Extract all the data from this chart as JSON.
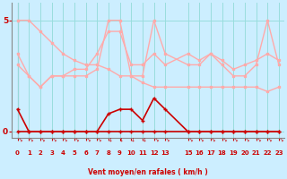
{
  "bg_color": "#cceeff",
  "grid_color": "#99dddd",
  "line_color_dark": "#cc0000",
  "line_color_light": "#ffaaaa",
  "xlabel": "Vent moyen/en rafales ( km/h )",
  "ylim": [
    -0.3,
    5.8
  ],
  "xlim": [
    -0.5,
    23.5
  ],
  "xticks": [
    0,
    1,
    2,
    3,
    4,
    5,
    6,
    7,
    8,
    9,
    10,
    11,
    12,
    13,
    15,
    16,
    17,
    18,
    19,
    20,
    21,
    22,
    23
  ],
  "yticks": [
    0,
    5
  ],
  "series_light": [
    {
      "x": [
        0,
        1,
        2,
        3,
        4,
        5,
        6,
        7,
        8,
        9,
        10,
        11,
        12,
        13,
        15,
        16,
        17,
        18,
        19,
        20,
        21,
        22,
        23
      ],
      "y": [
        5.0,
        5.0,
        4.5,
        4.0,
        3.5,
        3.2,
        3.0,
        3.0,
        2.8,
        2.5,
        2.5,
        2.2,
        2.0,
        2.0,
        2.0,
        2.0,
        2.0,
        2.0,
        2.0,
        2.0,
        2.0,
        1.8,
        2.0
      ]
    },
    {
      "x": [
        0,
        1,
        2,
        3,
        4,
        5,
        6,
        7,
        8,
        9,
        10,
        11,
        12,
        13,
        15,
        16,
        17,
        18,
        19,
        20,
        21,
        22,
        23
      ],
      "y": [
        3.0,
        2.5,
        2.0,
        2.5,
        2.5,
        2.5,
        2.5,
        2.8,
        5.0,
        5.0,
        2.5,
        2.5,
        5.0,
        3.5,
        3.0,
        3.0,
        3.5,
        3.0,
        2.5,
        2.5,
        3.0,
        5.0,
        3.0
      ]
    },
    {
      "x": [
        0,
        1,
        2,
        3,
        4,
        5,
        6,
        7,
        8,
        9,
        10,
        11,
        12,
        13,
        15,
        16,
        17,
        18,
        19,
        20,
        21,
        22,
        23
      ],
      "y": [
        3.5,
        2.5,
        2.0,
        2.5,
        2.5,
        2.8,
        2.8,
        3.5,
        4.5,
        4.5,
        3.0,
        3.0,
        3.5,
        3.0,
        3.5,
        3.2,
        3.5,
        3.2,
        2.8,
        3.0,
        3.2,
        3.5,
        3.2
      ]
    }
  ],
  "series_dark": [
    {
      "x": [
        0,
        1,
        2,
        3,
        4,
        5,
        6,
        7,
        8,
        9,
        10,
        11,
        12,
        13,
        15,
        16,
        17,
        18,
        19,
        20,
        21,
        22,
        23
      ],
      "y": [
        1.0,
        0.0,
        0.0,
        0.0,
        0.0,
        0.0,
        0.0,
        0.0,
        0.8,
        1.0,
        1.0,
        0.5,
        1.5,
        1.0,
        0.0,
        0.0,
        0.0,
        0.0,
        0.0,
        0.0,
        0.0,
        0.0,
        0.0
      ]
    },
    {
      "x": [
        0,
        1,
        2,
        3,
        4,
        5,
        6,
        7,
        8,
        9,
        10,
        11,
        12,
        13,
        15,
        16,
        17,
        18,
        19,
        20,
        21,
        22,
        23
      ],
      "y": [
        0.0,
        0.0,
        0.0,
        0.0,
        0.0,
        0.0,
        0.0,
        0.0,
        0.0,
        0.0,
        0.0,
        0.0,
        0.0,
        0.0,
        0.0,
        0.0,
        0.0,
        0.0,
        0.0,
        0.0,
        0.0,
        0.0,
        0.0
      ]
    }
  ]
}
